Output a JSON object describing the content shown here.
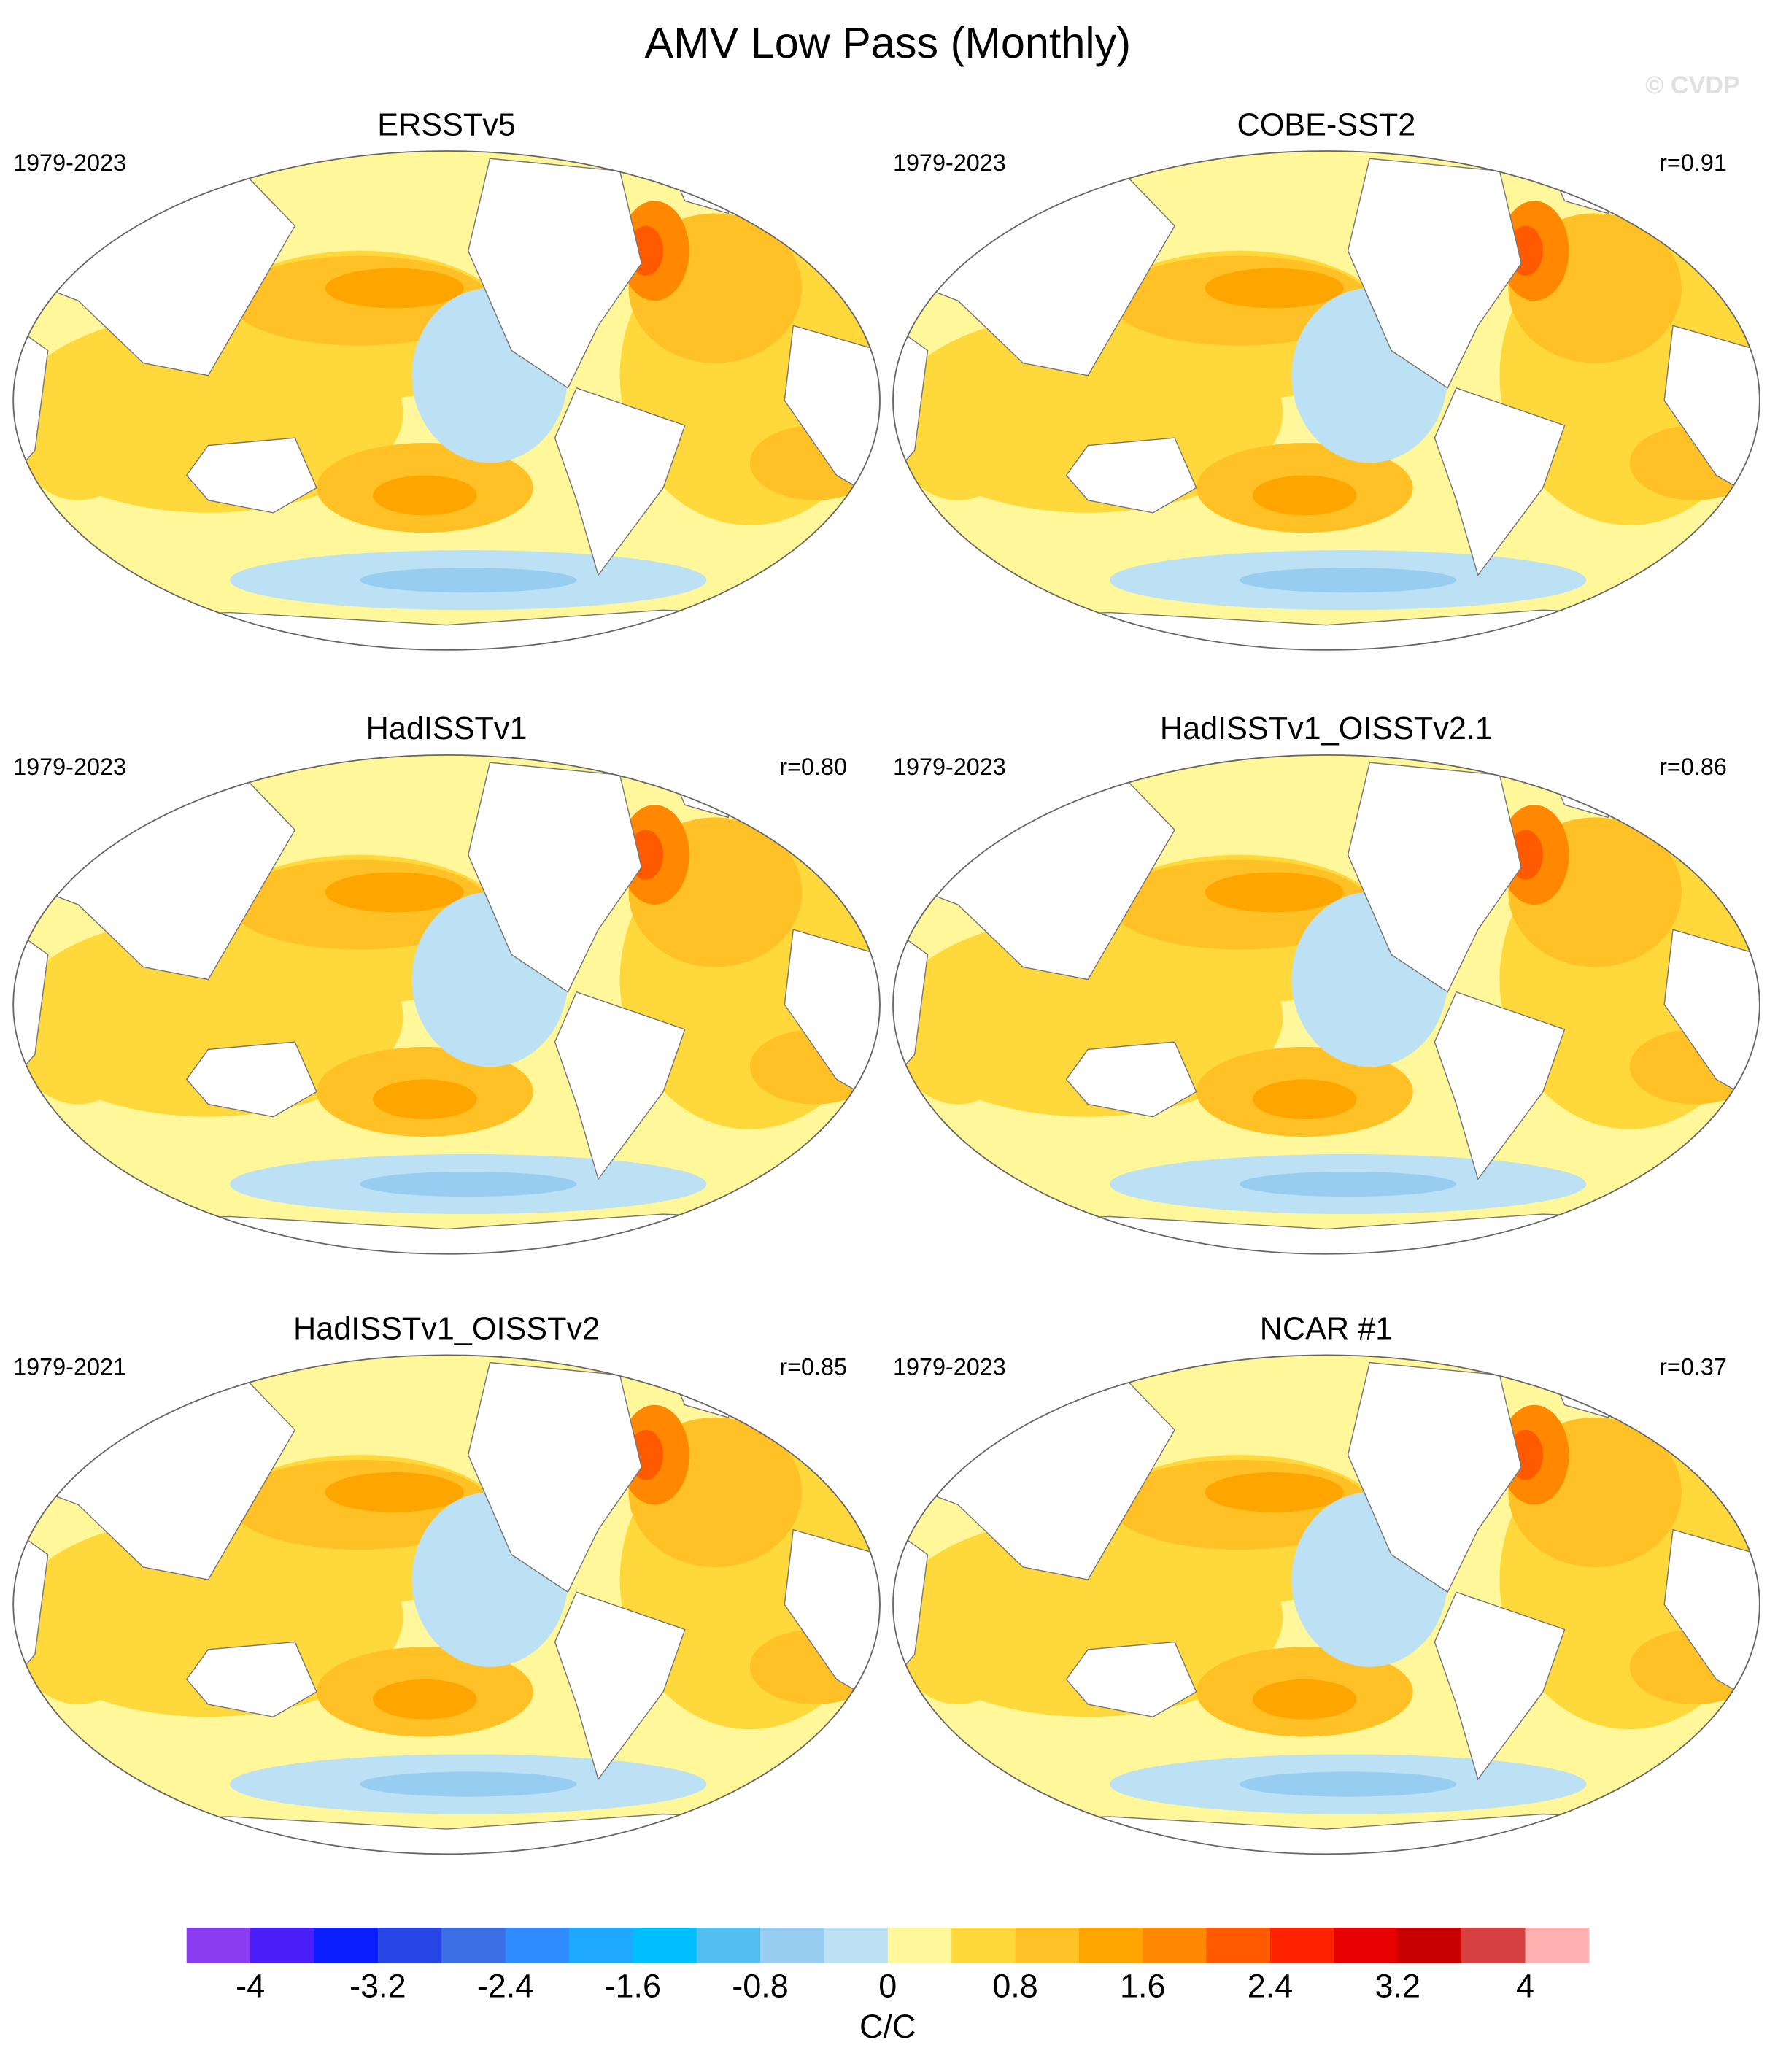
{
  "title": "AMV Low Pass (Monthly)",
  "watermark": "© CVDP",
  "panels": [
    {
      "title": "ERSSTv5",
      "period": "1979-2023"
    },
    {
      "title": "COBE-SST2",
      "period": "1979-2023",
      "r": "r=0.91"
    },
    {
      "title": "HadISSTv1",
      "period": "1979-2023",
      "r": "r=0.80"
    },
    {
      "title": "HadISSTv1_OISSTv2.1",
      "period": "1979-2023",
      "r": "r=0.86"
    },
    {
      "title": "HadISSTv1_OISSTv2",
      "period": "1979-2021",
      "r": "r=0.85"
    },
    {
      "title": "NCAR #1",
      "period": "1979-2023",
      "r": "r=0.37"
    }
  ],
  "colorbar": {
    "range": [
      -4.4,
      4.4
    ],
    "ticks": [
      -4,
      -3.2,
      -2.4,
      -1.6,
      -0.8,
      0,
      0.8,
      1.6,
      2.4,
      3.2,
      4
    ],
    "label": "C/C",
    "colors": [
      "#8c3cf0",
      "#4a1ef8",
      "#0a1eff",
      "#2846e6",
      "#3c6ee6",
      "#2e8cff",
      "#1ea8ff",
      "#00beff",
      "#52bff0",
      "#96cdf0",
      "#bce0f4",
      "#fff79a",
      "#ffd93b",
      "#ffc125",
      "#ffa500",
      "#ff8800",
      "#ff5a00",
      "#ff2200",
      "#e60000",
      "#c80000",
      "#d74040",
      "#ffb0b0"
    ]
  }
}
